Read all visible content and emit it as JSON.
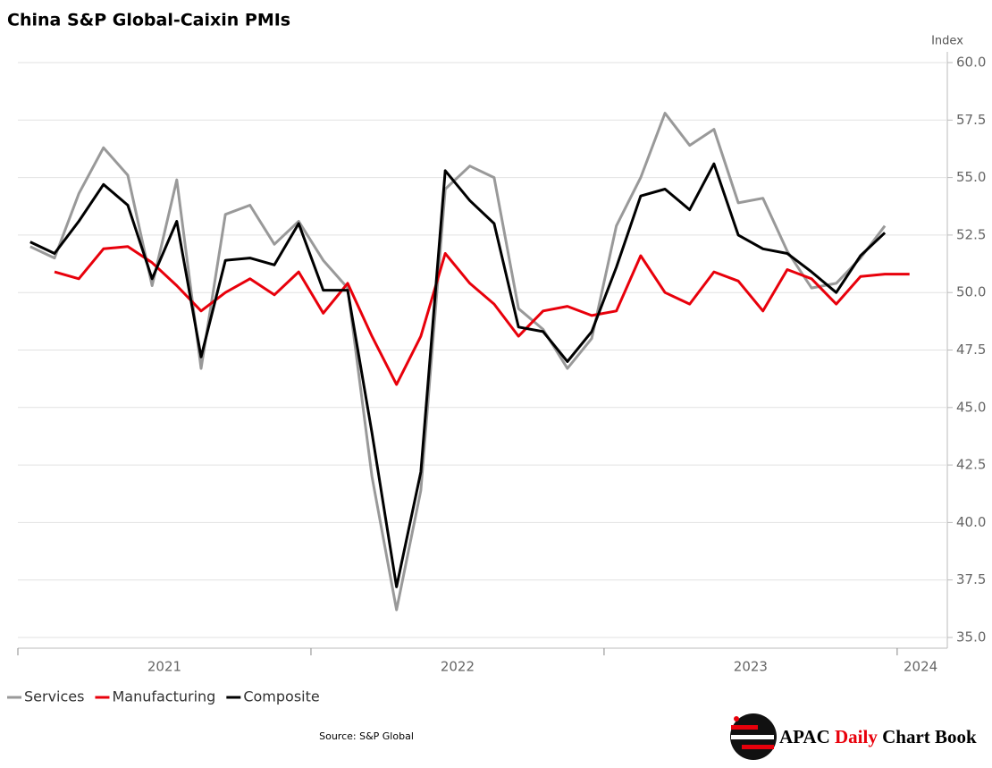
{
  "chart_data": {
    "type": "line",
    "title": "China S&P Global-Caixin PMIs",
    "y_axis_label": "Index",
    "source": "Source: S&P Global",
    "logo": [
      "APAC",
      "Daily",
      "Chart Book"
    ],
    "x": [
      2021.042,
      2021.125,
      2021.208,
      2021.292,
      2021.375,
      2021.458,
      2021.542,
      2021.625,
      2021.708,
      2021.792,
      2021.875,
      2021.958,
      2022.042,
      2022.125,
      2022.208,
      2022.292,
      2022.375,
      2022.458,
      2022.542,
      2022.625,
      2022.708,
      2022.792,
      2022.875,
      2022.958,
      2023.042,
      2023.125,
      2023.208,
      2023.292,
      2023.375,
      2023.458,
      2023.542,
      2023.625,
      2023.708,
      2023.792,
      2023.875,
      2023.958,
      2024.042
    ],
    "series": [
      {
        "name": "Services",
        "color": "#999999",
        "values": [
          52.0,
          51.5,
          54.3,
          56.3,
          55.1,
          50.3,
          54.9,
          46.7,
          53.4,
          53.8,
          52.1,
          53.1,
          51.4,
          50.2,
          42.0,
          36.2,
          41.4,
          54.5,
          55.5,
          55.0,
          49.3,
          48.4,
          46.7,
          48.0,
          52.9,
          55.0,
          57.8,
          56.4,
          57.1,
          53.9,
          54.1,
          51.8,
          50.2,
          50.4,
          51.5,
          52.9,
          null
        ]
      },
      {
        "name": "Manufacturing",
        "color": "#e8000b",
        "values": [
          null,
          50.9,
          50.6,
          51.9,
          52.0,
          51.3,
          50.3,
          49.2,
          50.0,
          50.6,
          49.9,
          50.9,
          49.1,
          50.4,
          48.1,
          46.0,
          48.1,
          51.7,
          50.4,
          49.5,
          48.1,
          49.2,
          49.4,
          49.0,
          49.2,
          51.6,
          50.0,
          49.5,
          50.9,
          50.5,
          49.2,
          51.0,
          50.6,
          49.5,
          50.7,
          50.8,
          50.8
        ]
      },
      {
        "name": "Composite",
        "color": "#000000",
        "values": [
          52.2,
          51.7,
          53.1,
          54.7,
          53.8,
          50.6,
          53.1,
          47.2,
          51.4,
          51.5,
          51.2,
          53.0,
          50.1,
          50.1,
          43.9,
          37.2,
          42.2,
          55.3,
          54.0,
          53.0,
          48.5,
          48.3,
          47.0,
          48.3,
          51.1,
          54.2,
          54.5,
          53.6,
          55.6,
          52.5,
          51.9,
          51.7,
          50.9,
          50.0,
          51.6,
          52.6,
          null
        ]
      }
    ],
    "xlim": [
      2021,
      2024.165
    ],
    "x_tick_marks": [
      2021,
      2022,
      2023,
      2024
    ],
    "xticks": [
      {
        "value": 2021.5,
        "label": "2021"
      },
      {
        "value": 2022.5,
        "label": "2022"
      },
      {
        "value": 2023.5,
        "label": "2023"
      },
      {
        "value": 2024.08,
        "label": "2024"
      }
    ],
    "ylim": [
      35,
      60
    ],
    "yticks": [
      {
        "value": 35,
        "label": "35.0"
      },
      {
        "value": 37.5,
        "label": "37.5"
      },
      {
        "value": 40,
        "label": "40.0"
      },
      {
        "value": 42.5,
        "label": "42.5"
      },
      {
        "value": 45,
        "label": "45.0"
      },
      {
        "value": 47.5,
        "label": "47.5"
      },
      {
        "value": 50,
        "label": "50.0"
      },
      {
        "value": 52.5,
        "label": "52.5"
      },
      {
        "value": 55,
        "label": "55.0"
      },
      {
        "value": 57.5,
        "label": "57.5"
      },
      {
        "value": 60,
        "label": "60.0"
      }
    ],
    "grid": true,
    "legend": "bottom-left"
  }
}
